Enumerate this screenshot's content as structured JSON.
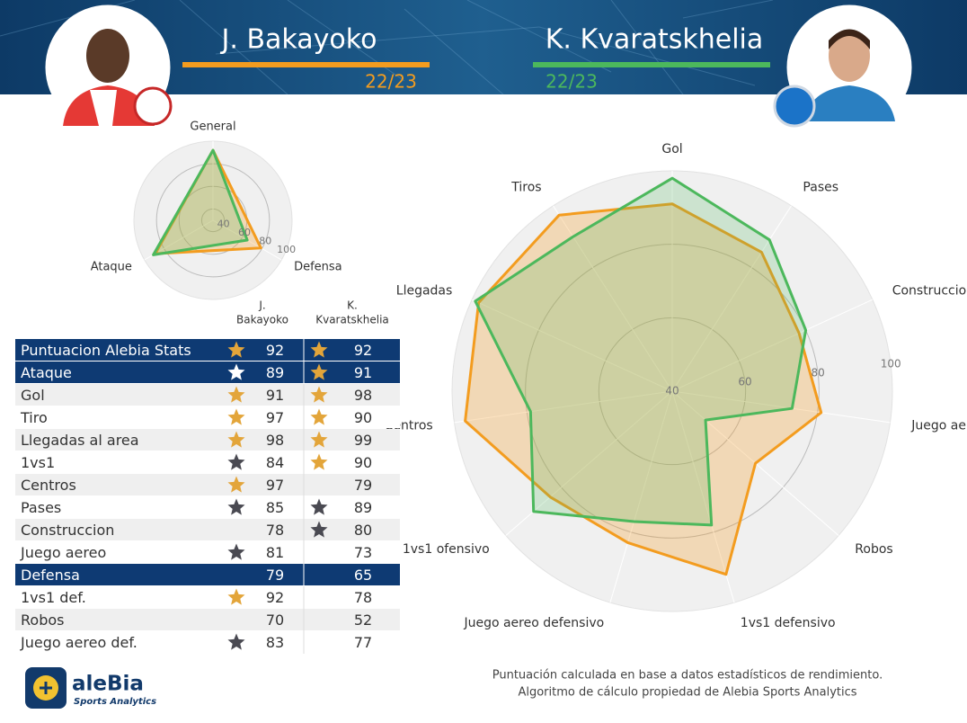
{
  "header": {
    "players": [
      {
        "name": "J. Bakayoko",
        "season": "22/23",
        "color": "#f39c1f"
      },
      {
        "name": "K. Kvaratskhelia",
        "season": "22/23",
        "color": "#4cb85c"
      }
    ]
  },
  "chart_data": [
    {
      "type": "radar",
      "categories": [
        "General",
        "Defensa",
        "Ataque"
      ],
      "series": [
        {
          "name": "J. Bakayoko",
          "color": "#f39c1f",
          "values": [
            92,
            79,
            89
          ]
        },
        {
          "name": "K. Kvaratskhelia",
          "color": "#4cb85c",
          "values": [
            92,
            65,
            91
          ]
        }
      ],
      "rlim": [
        30,
        100
      ],
      "rticks": [
        40,
        60,
        80,
        100
      ]
    },
    {
      "type": "radar",
      "categories": [
        "Gol",
        "Pases",
        "Construccion",
        "Juego aereo",
        "Robos",
        "1vs1 defensivo",
        "Juego aereo defensivo",
        "1vs1 ofensivo",
        "Centros",
        "Llegadas",
        "Tiros"
      ],
      "series": [
        {
          "name": "J. Bakayoko",
          "color": "#f39c1f",
          "values": [
            91,
            85,
            78,
            81,
            70,
            92,
            83,
            84,
            97,
            98,
            97
          ]
        },
        {
          "name": "K. Kvaratskhelia",
          "color": "#4cb85c",
          "values": [
            98,
            89,
            80,
            73,
            52,
            78,
            77,
            90,
            79,
            99,
            90
          ]
        }
      ],
      "rlim": [
        40,
        100
      ],
      "rticks": [
        40,
        60,
        80,
        100
      ]
    }
  ],
  "table": {
    "columns": [
      [
        "J.",
        "Bakayoko"
      ],
      [
        "K.",
        "Kvaratskhelia"
      ]
    ],
    "rows": [
      {
        "label": "Puntuacion Alebia Stats",
        "section": true,
        "values": [
          92,
          92
        ],
        "stars": [
          "gold",
          "gold"
        ]
      },
      {
        "label": "Ataque",
        "section": true,
        "values": [
          89,
          91
        ],
        "stars": [
          "white",
          "gold"
        ]
      },
      {
        "label": "Gol",
        "section": false,
        "values": [
          91,
          98
        ],
        "stars": [
          "gold",
          "gold"
        ]
      },
      {
        "label": "Tiro",
        "section": false,
        "values": [
          97,
          90
        ],
        "stars": [
          "gold",
          "gold"
        ]
      },
      {
        "label": "Llegadas al area",
        "section": false,
        "values": [
          98,
          99
        ],
        "stars": [
          "gold",
          "gold"
        ]
      },
      {
        "label": "1vs1",
        "section": false,
        "values": [
          84,
          90
        ],
        "stars": [
          "dark",
          "gold"
        ]
      },
      {
        "label": "Centros",
        "section": false,
        "values": [
          97,
          79
        ],
        "stars": [
          "gold",
          null
        ]
      },
      {
        "label": "Pases",
        "section": false,
        "values": [
          85,
          89
        ],
        "stars": [
          "dark",
          "dark"
        ]
      },
      {
        "label": "Construccion",
        "section": false,
        "values": [
          78,
          80
        ],
        "stars": [
          null,
          "dark"
        ]
      },
      {
        "label": "Juego aereo",
        "section": false,
        "values": [
          81,
          73
        ],
        "stars": [
          "dark",
          null
        ]
      },
      {
        "label": "Defensa",
        "section": true,
        "values": [
          79,
          65
        ],
        "stars": [
          null,
          null
        ]
      },
      {
        "label": "1vs1 def.",
        "section": false,
        "values": [
          92,
          78
        ],
        "stars": [
          "gold",
          null
        ]
      },
      {
        "label": "Robos",
        "section": false,
        "values": [
          70,
          52
        ],
        "stars": [
          null,
          null
        ]
      },
      {
        "label": "Juego aereo def.",
        "section": false,
        "values": [
          83,
          77
        ],
        "stars": [
          "dark",
          null
        ]
      }
    ]
  },
  "footer": {
    "logo": {
      "name": "aleBia",
      "tagline": "Sports Analytics"
    },
    "notes": [
      "Puntuación calculada en base a datos estadísticos de rendimiento.",
      "Algoritmo de cálculo propiedad de Alebia Sports Analytics"
    ]
  }
}
